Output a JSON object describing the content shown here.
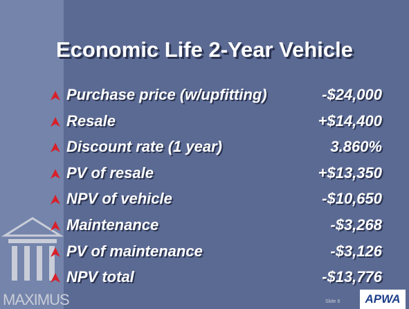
{
  "slide": {
    "title": "Economic Life 2-Year Vehicle",
    "items": [
      {
        "label": "Purchase price (w/upfitting)",
        "value": "-$24,000"
      },
      {
        "label": "Resale",
        "value": "+$14,400"
      },
      {
        "label": "Discount rate (1 year)",
        "value": "3.860%"
      },
      {
        "label": "PV of resale",
        "value": "+$13,350"
      },
      {
        "label": "NPV of vehicle",
        "value": "-$10,650"
      },
      {
        "label": "Maintenance",
        "value": "-$3,268"
      },
      {
        "label": "PV of maintenance",
        "value": "-$3,126"
      },
      {
        "label": "NPV total",
        "value": "-$13,776"
      }
    ],
    "logo": "MAXIMUS",
    "slide_number": "Slide 6",
    "partner_logo": "APWA"
  }
}
